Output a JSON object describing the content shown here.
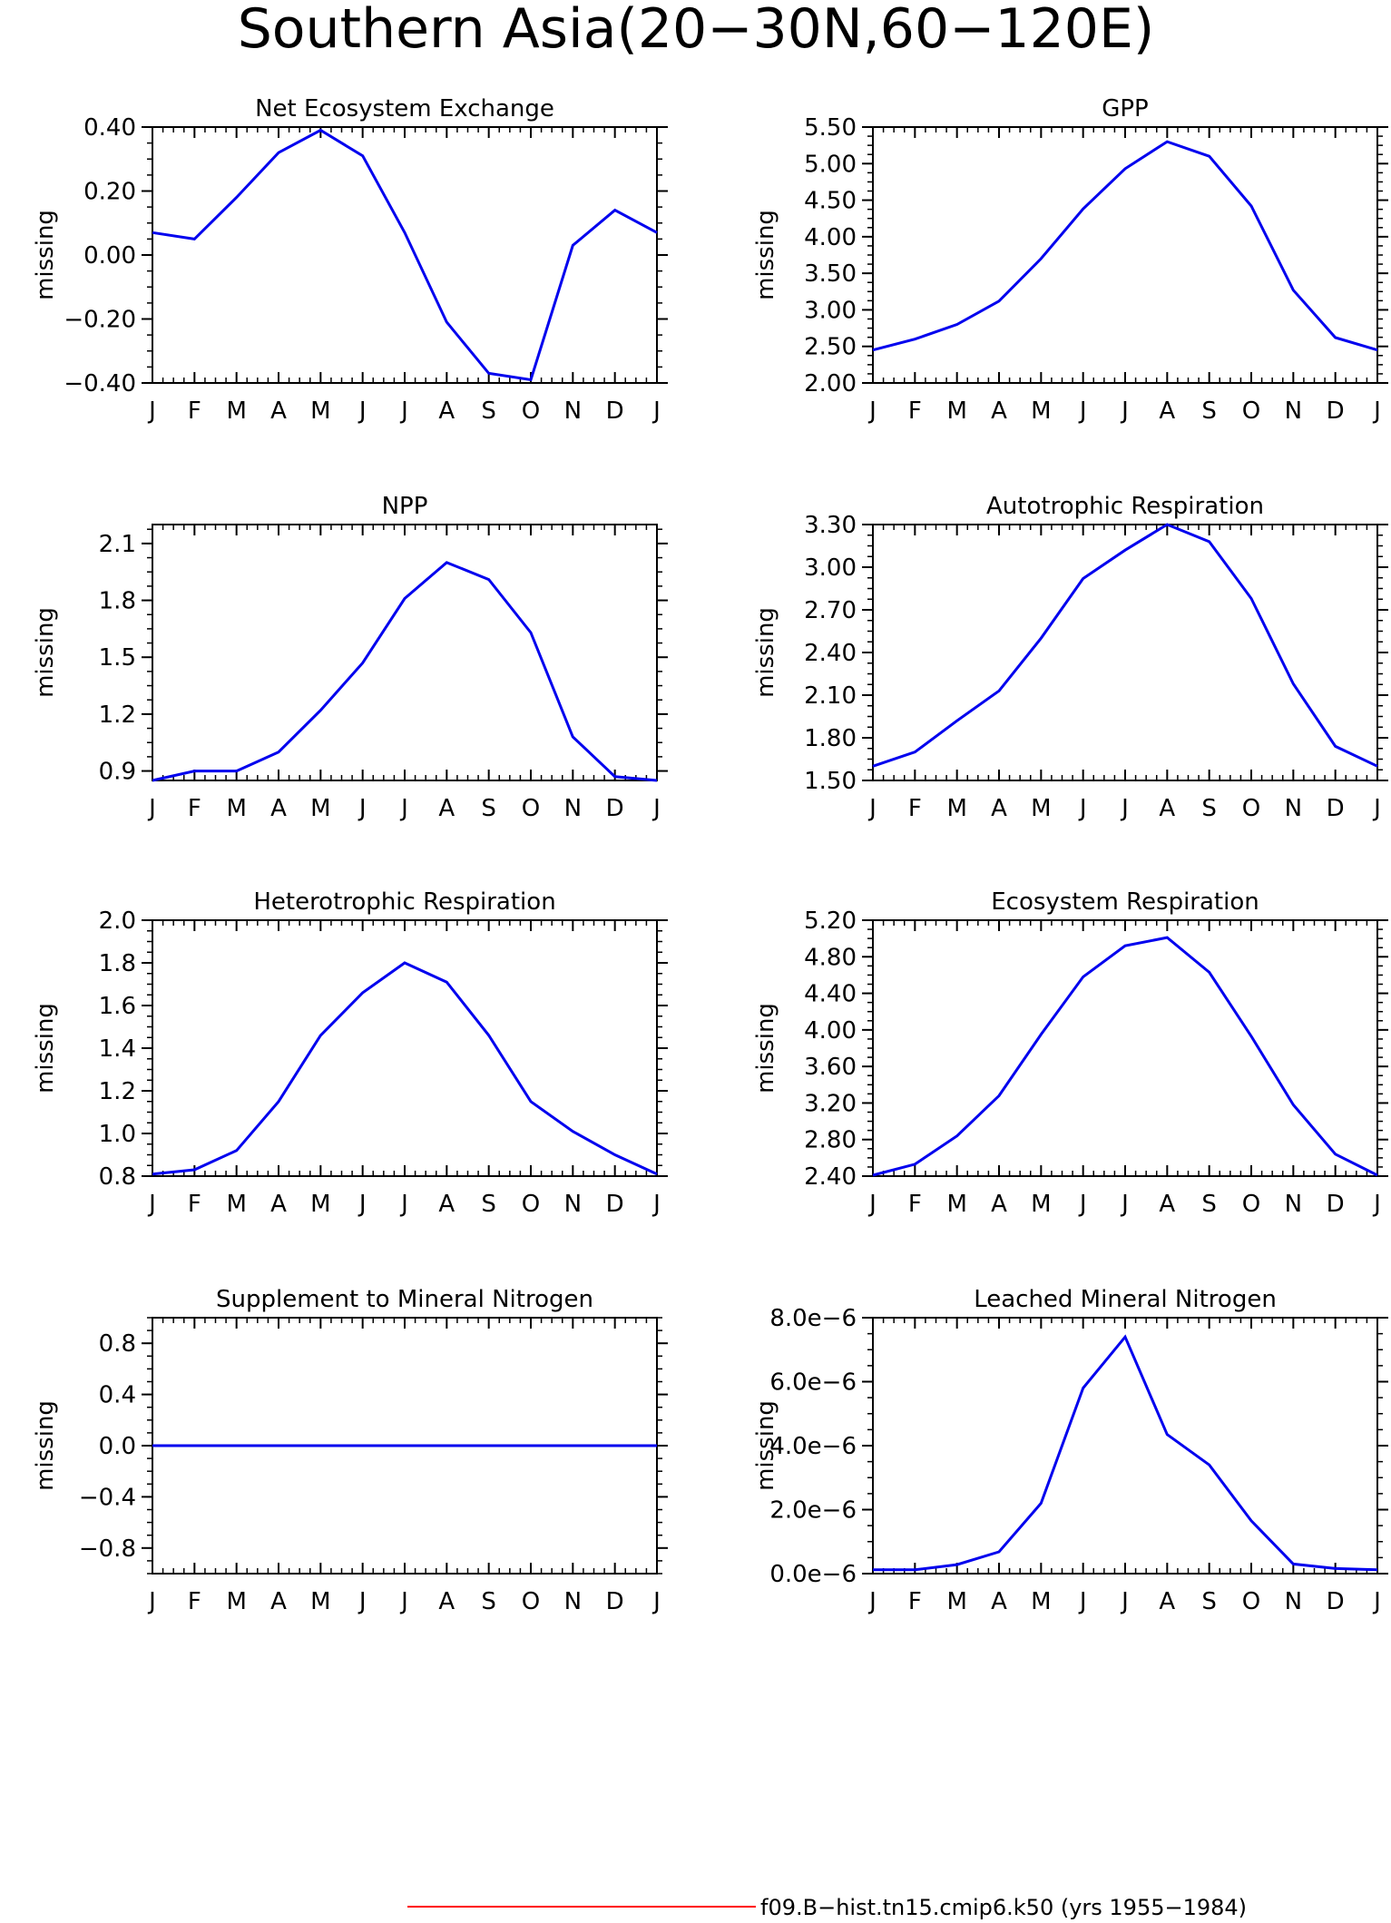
{
  "page_title": "Southern Asia(20−30N,60−120E)",
  "legend": {
    "label": "f09.B−hist.tn15.cmip6.k50 (yrs 1955−1984)",
    "color": "#ff0000"
  },
  "line_color": "#0000ee",
  "chart_data": [
    {
      "type": "line",
      "title": "Net Ecosystem Exchange",
      "ylabel": "missing",
      "categories": [
        "J",
        "F",
        "M",
        "A",
        "M",
        "J",
        "J",
        "A",
        "S",
        "O",
        "N",
        "D",
        "J"
      ],
      "values": [
        0.07,
        0.05,
        0.18,
        0.32,
        0.39,
        0.31,
        0.07,
        -0.21,
        -0.37,
        -0.39,
        0.03,
        0.14,
        0.07
      ],
      "ylim": [
        -0.4,
        0.4
      ],
      "yticks": [
        -0.4,
        -0.2,
        0.0,
        0.2,
        0.4
      ],
      "yticklabels": [
        "−0.40",
        "−0.20",
        "0.00",
        "0.20",
        "0.40"
      ]
    },
    {
      "type": "line",
      "title": "GPP",
      "ylabel": "missing",
      "categories": [
        "J",
        "F",
        "M",
        "A",
        "M",
        "J",
        "J",
        "A",
        "S",
        "O",
        "N",
        "D",
        "J"
      ],
      "values": [
        2.45,
        2.6,
        2.8,
        3.12,
        3.7,
        4.38,
        4.93,
        5.3,
        5.1,
        4.42,
        3.27,
        2.62,
        2.45
      ],
      "ylim": [
        2.0,
        5.5
      ],
      "yticks": [
        2.0,
        2.5,
        3.0,
        3.5,
        4.0,
        4.5,
        5.0,
        5.5
      ],
      "yticklabels": [
        "2.00",
        "2.50",
        "3.00",
        "3.50",
        "4.00",
        "4.50",
        "5.00",
        "5.50"
      ]
    },
    {
      "type": "line",
      "title": "NPP",
      "ylabel": "missing",
      "categories": [
        "J",
        "F",
        "M",
        "A",
        "M",
        "J",
        "J",
        "A",
        "S",
        "O",
        "N",
        "D",
        "J"
      ],
      "values": [
        0.85,
        0.9,
        0.9,
        1.0,
        1.22,
        1.47,
        1.81,
        2.0,
        1.91,
        1.63,
        1.08,
        0.87,
        0.85
      ],
      "ylim": [
        0.85,
        2.2
      ],
      "yticks": [
        0.9,
        1.2,
        1.5,
        1.8,
        2.1
      ],
      "yticklabels": [
        "0.9",
        "1.2",
        "1.5",
        "1.8",
        "2.1"
      ]
    },
    {
      "type": "line",
      "title": "Autotrophic Respiration",
      "ylabel": "missing",
      "categories": [
        "J",
        "F",
        "M",
        "A",
        "M",
        "J",
        "J",
        "A",
        "S",
        "O",
        "N",
        "D",
        "J"
      ],
      "values": [
        1.6,
        1.7,
        1.92,
        2.13,
        2.5,
        2.92,
        3.12,
        3.3,
        3.18,
        2.78,
        2.18,
        1.74,
        1.6
      ],
      "ylim": [
        1.5,
        3.3
      ],
      "yticks": [
        1.5,
        1.8,
        2.1,
        2.4,
        2.7,
        3.0,
        3.3
      ],
      "yticklabels": [
        "1.50",
        "1.80",
        "2.10",
        "2.40",
        "2.70",
        "3.00",
        "3.30"
      ]
    },
    {
      "type": "line",
      "title": "Heterotrophic Respiration",
      "ylabel": "missing",
      "categories": [
        "J",
        "F",
        "M",
        "A",
        "M",
        "J",
        "J",
        "A",
        "S",
        "O",
        "N",
        "D",
        "J"
      ],
      "values": [
        0.81,
        0.83,
        0.92,
        1.15,
        1.46,
        1.66,
        1.8,
        1.71,
        1.46,
        1.15,
        1.01,
        0.9,
        0.81
      ],
      "ylim": [
        0.8,
        2.0
      ],
      "yticks": [
        0.8,
        1.0,
        1.2,
        1.4,
        1.6,
        1.8,
        2.0
      ],
      "yticklabels": [
        "0.8",
        "1.0",
        "1.2",
        "1.4",
        "1.6",
        "1.8",
        "2.0"
      ]
    },
    {
      "type": "line",
      "title": "Ecosystem Respiration",
      "ylabel": "missing",
      "categories": [
        "J",
        "F",
        "M",
        "A",
        "M",
        "J",
        "J",
        "A",
        "S",
        "O",
        "N",
        "D",
        "J"
      ],
      "values": [
        2.41,
        2.53,
        2.84,
        3.28,
        3.95,
        4.58,
        4.92,
        5.01,
        4.63,
        3.93,
        3.18,
        2.64,
        2.41
      ],
      "ylim": [
        2.4,
        5.2
      ],
      "yticks": [
        2.4,
        2.8,
        3.2,
        3.6,
        4.0,
        4.4,
        4.8,
        5.2
      ],
      "yticklabels": [
        "2.40",
        "2.80",
        "3.20",
        "3.60",
        "4.00",
        "4.40",
        "4.80",
        "5.20"
      ]
    },
    {
      "type": "line",
      "title": "Supplement to Mineral Nitrogen",
      "ylabel": "missing",
      "categories": [
        "J",
        "F",
        "M",
        "A",
        "M",
        "J",
        "J",
        "A",
        "S",
        "O",
        "N",
        "D",
        "J"
      ],
      "values": [
        0,
        0,
        0,
        0,
        0,
        0,
        0,
        0,
        0,
        0,
        0,
        0,
        0
      ],
      "ylim": [
        -1.0,
        1.0
      ],
      "yticks": [
        -0.8,
        -0.4,
        0.0,
        0.4,
        0.8
      ],
      "yticklabels": [
        "−0.8",
        "−0.4",
        "0.0",
        "0.4",
        "0.8"
      ]
    },
    {
      "type": "line",
      "title": "Leached Mineral Nitrogen",
      "ylabel": "missing",
      "categories": [
        "J",
        "F",
        "M",
        "A",
        "M",
        "J",
        "J",
        "A",
        "S",
        "O",
        "N",
        "D",
        "J"
      ],
      "values": [
        1.2e-07,
        1.2e-07,
        2.8e-07,
        6.8e-07,
        2.2e-06,
        5.8e-06,
        7.4e-06,
        4.35e-06,
        3.4e-06,
        1.65e-06,
        3e-07,
        1.6e-07,
        1.2e-07
      ],
      "ylim": [
        0,
        8e-06
      ],
      "yticks": [
        0,
        2e-06,
        4e-06,
        6e-06,
        8e-06
      ],
      "yticklabels": [
        "0.0e−6",
        "2.0e−6",
        "4.0e−6",
        "6.0e−6",
        "8.0e−6"
      ]
    }
  ]
}
